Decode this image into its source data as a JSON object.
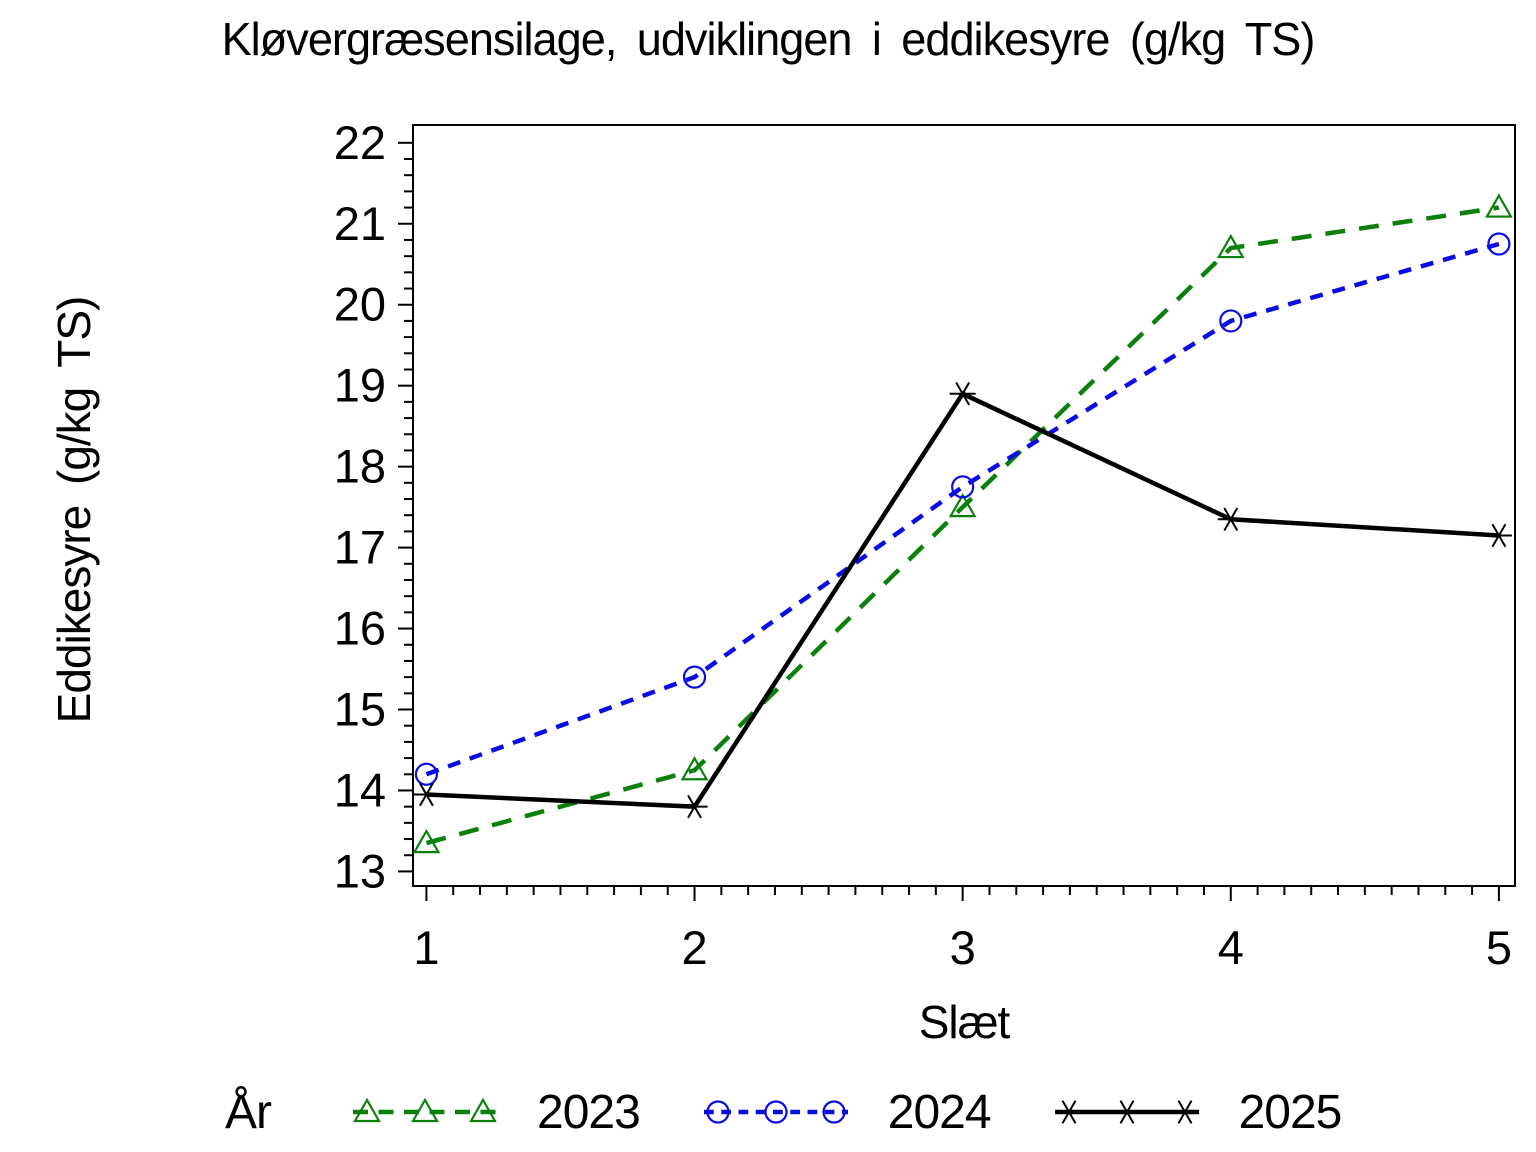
{
  "chart_data": {
    "type": "line",
    "title": "Kløvergræsensilage, udviklingen i eddikesyre (g/kg TS)",
    "xlabel": "Slæt",
    "ylabel": "Eddikesyre (g/kg TS)",
    "legend_title": "År",
    "legend_position": "bottom",
    "grid": false,
    "x": [
      1,
      2,
      3,
      4,
      5
    ],
    "xticks": [
      1,
      2,
      3,
      4,
      5
    ],
    "yticks": [
      13,
      14,
      15,
      16,
      17,
      18,
      19,
      20,
      21,
      22
    ],
    "xlim": [
      0.95,
      5.06
    ],
    "ylim": [
      12.82,
      22.22
    ],
    "x_minor_step": 0.1,
    "y_minor_step": 0.2,
    "series": [
      {
        "name": "2023",
        "color": "#0b800b",
        "dash": [
          20,
          14
        ],
        "marker": "triangle",
        "values": [
          13.35,
          14.25,
          17.5,
          20.7,
          21.2
        ]
      },
      {
        "name": "2024",
        "color": "#0b0be6",
        "dash": [
          13,
          10
        ],
        "marker": "circle",
        "values": [
          14.2,
          15.4,
          17.75,
          19.8,
          20.75
        ]
      },
      {
        "name": "2025",
        "color": "#000000",
        "dash": [],
        "marker": "star",
        "values": [
          13.95,
          13.8,
          18.9,
          17.35,
          17.15
        ]
      }
    ]
  }
}
